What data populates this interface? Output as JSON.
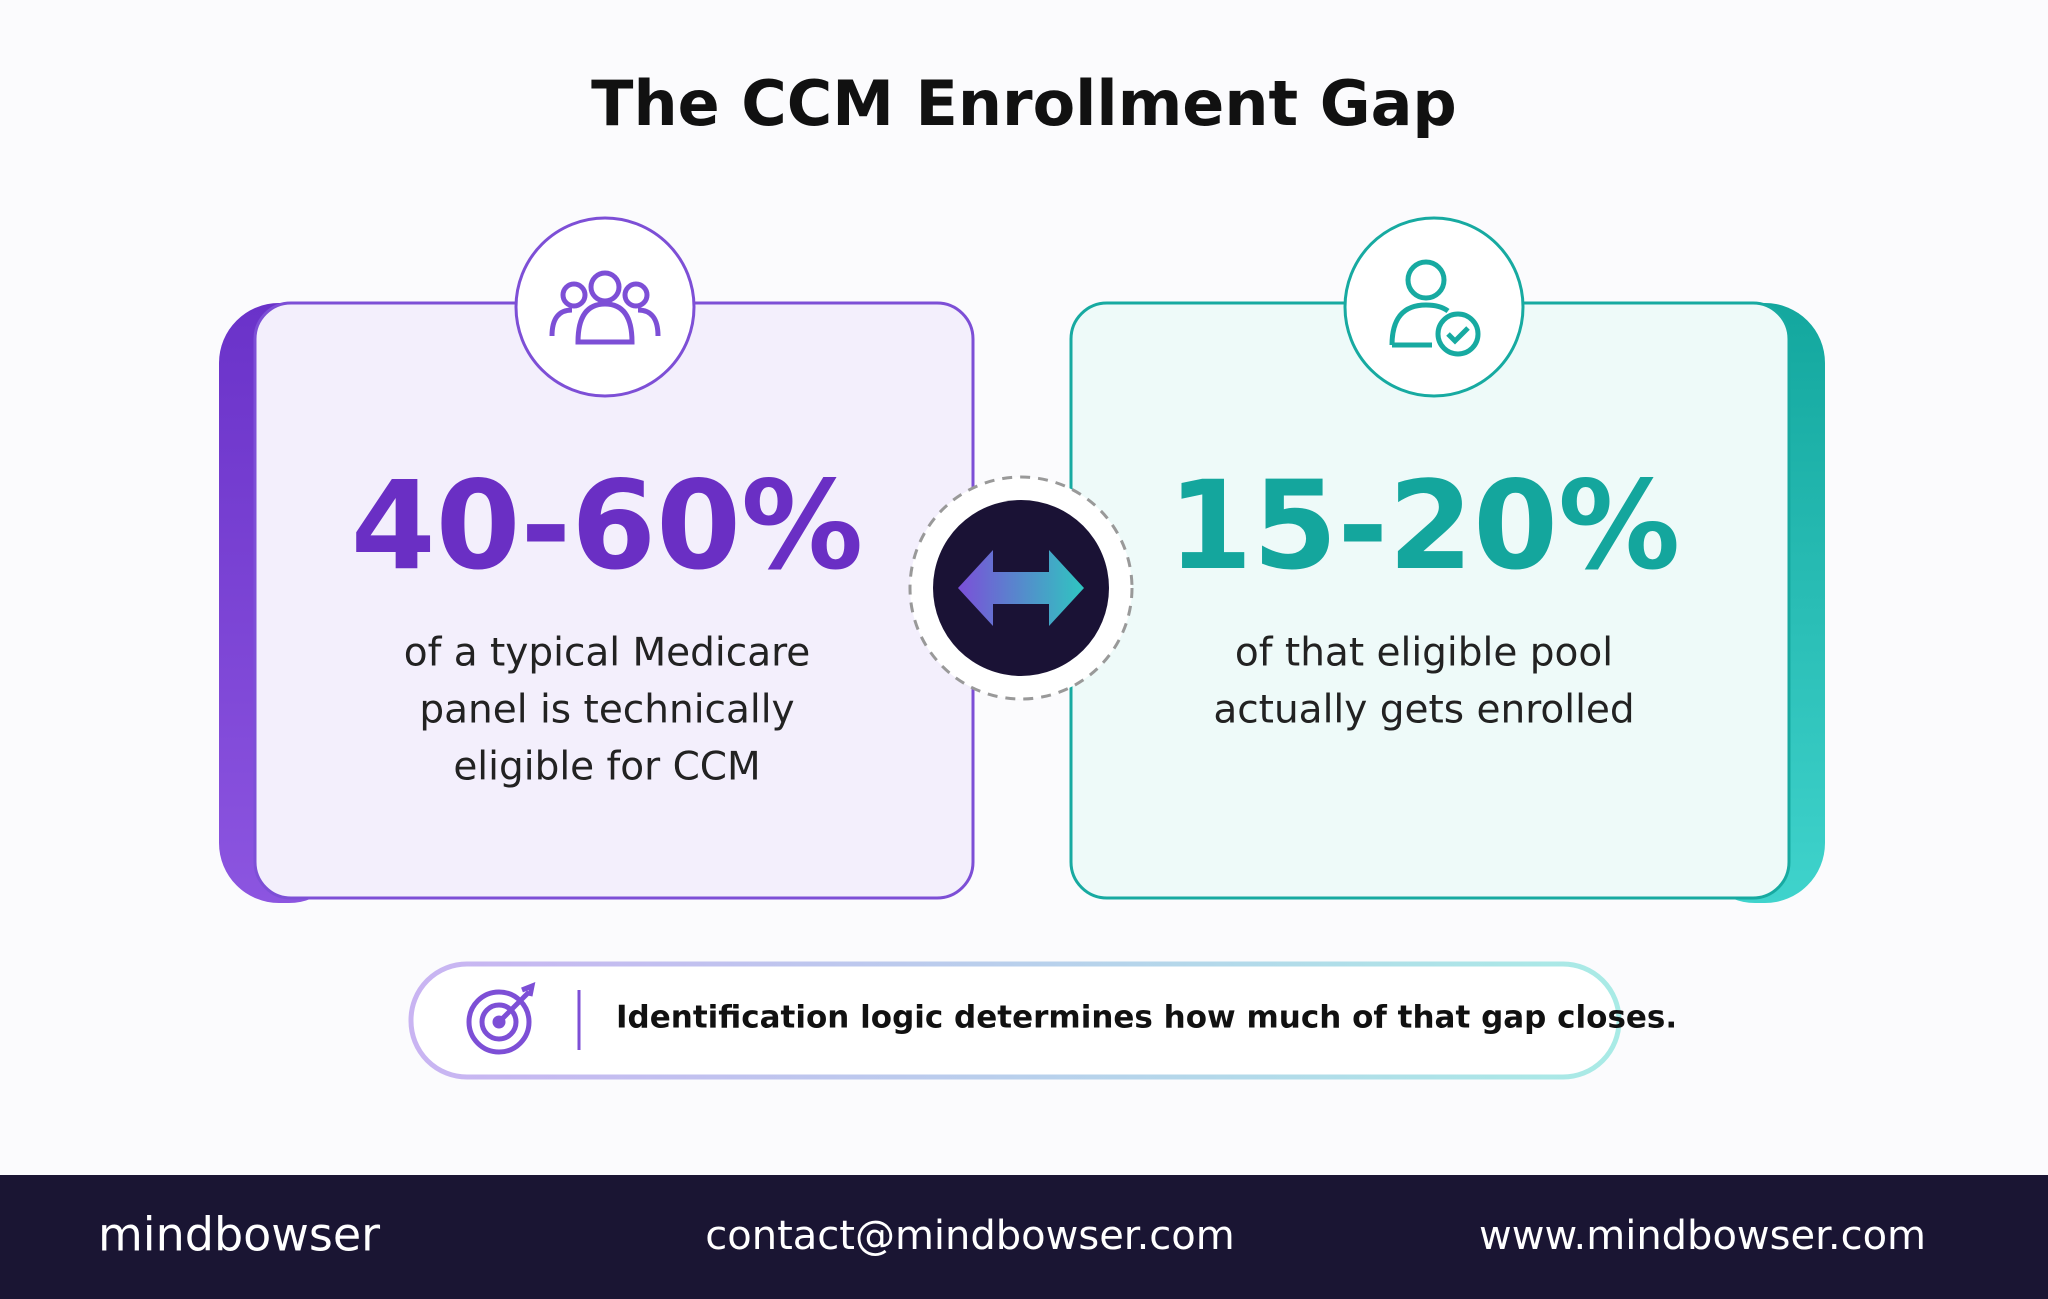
{
  "title": "The CCM Enrollment Gap",
  "cards": [
    {
      "stat": "40-60%",
      "lines": [
        "of a typical Medicare",
        "panel is technically",
        "eligible for CCM"
      ]
    },
    {
      "stat": "15-20%",
      "lines": [
        "of that eligible pool",
        "actually gets enrolled"
      ]
    }
  ],
  "callout": "Identification logic determines how much of that gap closes.",
  "footer": {
    "brand": "mindbowser",
    "email": "contact@mindbowser.com",
    "website": "www.mindbowser.com"
  }
}
